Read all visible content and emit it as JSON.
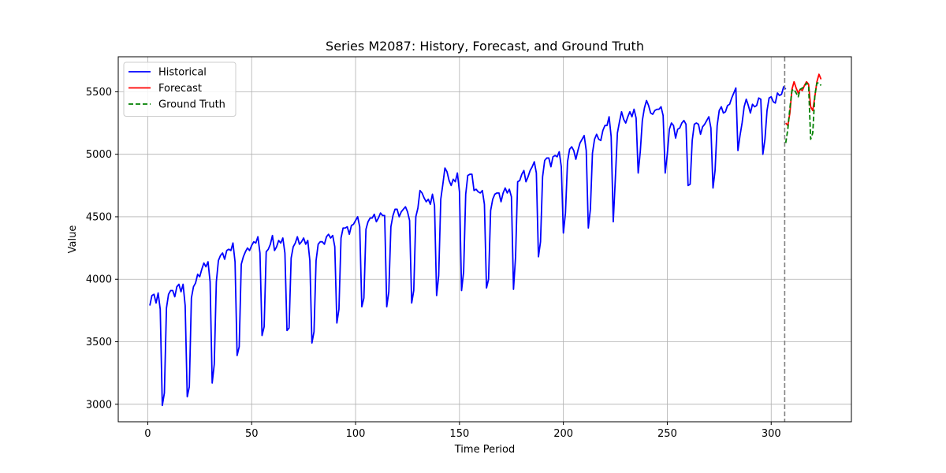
{
  "chart_data": {
    "type": "line",
    "title": "Series M2087: History, Forecast, and Ground Truth",
    "xlabel": "Time Period",
    "ylabel": "Value",
    "xlim": [
      -14.2,
      338.6
    ],
    "ylim": [
      2860,
      5780
    ],
    "xticks": [
      0,
      50,
      100,
      150,
      200,
      250,
      300
    ],
    "yticks": [
      3000,
      3500,
      4000,
      4500,
      5000,
      5500
    ],
    "grid": true,
    "legend_position": "top-left",
    "forecast_start": 307,
    "series": [
      {
        "name": "Historical",
        "color": "#0000ff",
        "style": "solid",
        "x_start": 1,
        "values": [
          3790,
          3870,
          3880,
          3810,
          3890,
          3760,
          2990,
          3090,
          3770,
          3880,
          3910,
          3910,
          3860,
          3940,
          3960,
          3900,
          3960,
          3790,
          3060,
          3140,
          3850,
          3940,
          3970,
          4040,
          4020,
          4080,
          4130,
          4100,
          4140,
          3980,
          3170,
          3320,
          3980,
          4150,
          4190,
          4210,
          4160,
          4230,
          4240,
          4230,
          4290,
          4140,
          3390,
          3460,
          4120,
          4180,
          4220,
          4250,
          4230,
          4270,
          4300,
          4290,
          4340,
          4210,
          3550,
          3620,
          4220,
          4240,
          4280,
          4350,
          4230,
          4260,
          4310,
          4290,
          4330,
          4210,
          3590,
          3610,
          4170,
          4260,
          4290,
          4340,
          4280,
          4300,
          4330,
          4280,
          4310,
          4150,
          3490,
          3580,
          4150,
          4280,
          4300,
          4300,
          4280,
          4340,
          4360,
          4330,
          4350,
          4260,
          3650,
          3760,
          4330,
          4410,
          4410,
          4420,
          4360,
          4430,
          4440,
          4470,
          4500,
          4420,
          3780,
          3850,
          4400,
          4460,
          4490,
          4490,
          4520,
          4460,
          4490,
          4530,
          4510,
          4510,
          3780,
          3900,
          4420,
          4510,
          4560,
          4560,
          4500,
          4540,
          4560,
          4580,
          4540,
          4470,
          3810,
          3910,
          4500,
          4570,
          4710,
          4690,
          4650,
          4620,
          4640,
          4600,
          4680,
          4590,
          3870,
          4030,
          4640,
          4760,
          4890,
          4860,
          4790,
          4750,
          4800,
          4780,
          4850,
          4700,
          3910,
          4060,
          4680,
          4830,
          4840,
          4840,
          4710,
          4720,
          4700,
          4690,
          4710,
          4600,
          3930,
          4000,
          4550,
          4640,
          4680,
          4690,
          4690,
          4620,
          4690,
          4730,
          4690,
          4720,
          4660,
          3920,
          4180,
          4780,
          4790,
          4840,
          4870,
          4780,
          4820,
          4870,
          4900,
          4940,
          4850,
          4180,
          4300,
          4820,
          4950,
          4970,
          4970,
          4900,
          4980,
          4990,
          4980,
          5020,
          4900,
          4370,
          4530,
          4940,
          5040,
          5060,
          5030,
          4960,
          5030,
          5090,
          5120,
          5150,
          5030,
          4410,
          4560,
          5010,
          5120,
          5160,
          5120,
          5110,
          5190,
          5230,
          5230,
          5300,
          5140,
          4460,
          4800,
          5170,
          5260,
          5340,
          5280,
          5250,
          5300,
          5340,
          5300,
          5360,
          5290,
          4850,
          5020,
          5270,
          5370,
          5430,
          5390,
          5330,
          5320,
          5350,
          5360,
          5360,
          5380,
          5310,
          4850,
          5000,
          5200,
          5250,
          5230,
          5130,
          5200,
          5210,
          5250,
          5270,
          5240,
          4750,
          4760,
          5110,
          5240,
          5250,
          5240,
          5160,
          5220,
          5240,
          5270,
          5300,
          5210,
          4730,
          4870,
          5230,
          5350,
          5380,
          5330,
          5340,
          5390,
          5400,
          5450,
          5490,
          5530,
          5030,
          5150,
          5250,
          5380,
          5440,
          5390,
          5330,
          5400,
          5380,
          5390,
          5450,
          5440,
          5000,
          5120,
          5350,
          5450,
          5460,
          5420,
          5410,
          5490,
          5470,
          5480,
          5540,
          5520
        ]
      },
      {
        "name": "Forecast",
        "color": "#ff0000",
        "style": "solid",
        "x_start": 307,
        "values": [
          5250,
          5230,
          5330,
          5520,
          5580,
          5530,
          5490,
          5520,
          5510,
          5550,
          5580,
          5560,
          5380,
          5350,
          5460,
          5580,
          5640,
          5600
        ]
      },
      {
        "name": "Ground Truth",
        "color": "#008000",
        "style": "dashed",
        "x_start": 307,
        "values": [
          5090,
          5200,
          5370,
          5510,
          5520,
          5490,
          5460,
          5520,
          5530,
          5540,
          5570,
          5550,
          5120,
          5170,
          5470,
          5570,
          5570,
          5550
        ]
      }
    ]
  }
}
